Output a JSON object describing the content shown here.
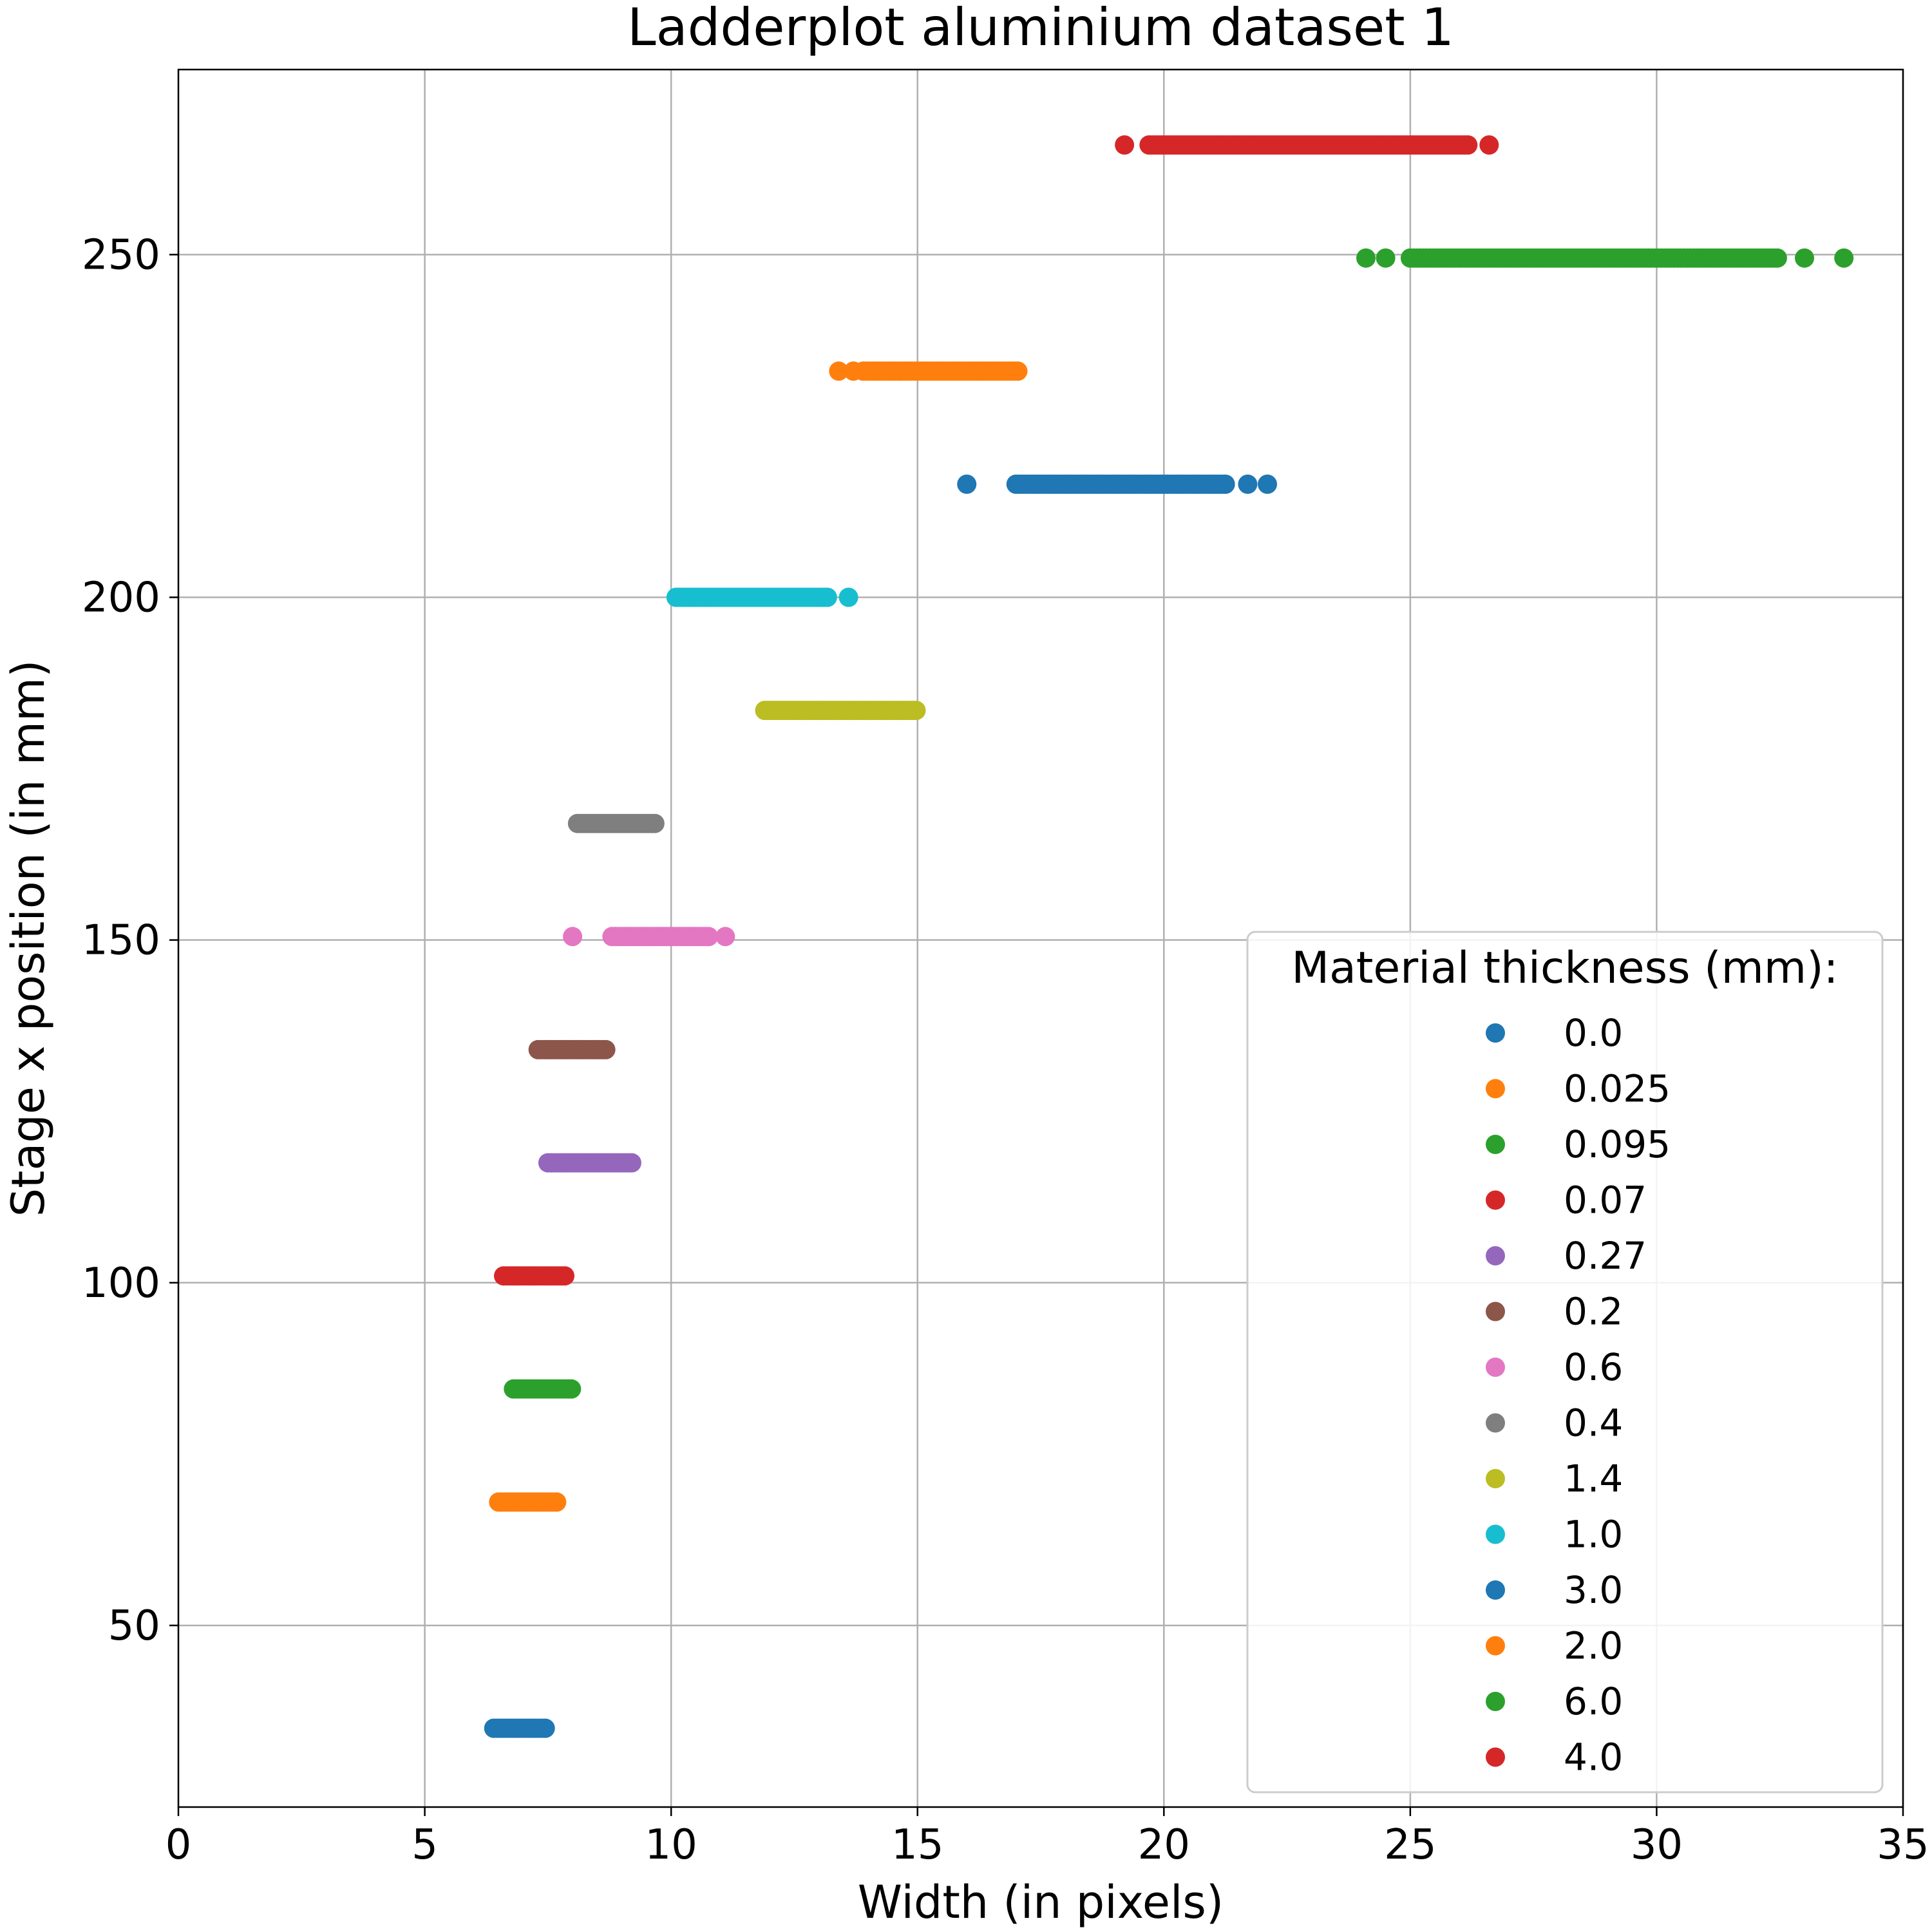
{
  "chart_data": {
    "type": "scatter",
    "title": "Ladderplot aluminium dataset 1",
    "xlabel": "Width (in pixels)",
    "ylabel": "Stage x position (in mm)",
    "xlim": [
      0,
      35
    ],
    "ylim": [
      23.5,
      277
    ],
    "xticks": [
      0,
      5,
      10,
      15,
      20,
      25,
      30,
      35
    ],
    "yticks": [
      50,
      100,
      150,
      200,
      250
    ],
    "grid": true,
    "legend": {
      "title": "Material thickness (mm):",
      "position": "lower-right"
    },
    "series": [
      {
        "name": "0.0",
        "color": "#1f77b4",
        "y": 35,
        "x_range": [
          6.4,
          7.5
        ],
        "outliers": []
      },
      {
        "name": "0.025",
        "color": "#ff7f0e",
        "y": 68,
        "x_range": [
          6.5,
          7.7
        ],
        "outliers": []
      },
      {
        "name": "0.095",
        "color": "#2ca02c",
        "y": 84.5,
        "x_range": [
          6.8,
          8.0
        ],
        "outliers": []
      },
      {
        "name": "0.07",
        "color": "#d62728",
        "y": 101,
        "x_range": [
          6.6,
          7.9
        ],
        "outliers": []
      },
      {
        "name": "0.27",
        "color": "#9467bd",
        "y": 117.5,
        "x_range": [
          7.5,
          9.2
        ],
        "outliers": []
      },
      {
        "name": "0.2",
        "color": "#8c564b",
        "y": 134,
        "x_range": [
          7.3,
          8.7
        ],
        "outliers": []
      },
      {
        "name": "0.6",
        "color": "#e377c2",
        "y": 150.5,
        "x_range": [
          8.8,
          10.8
        ],
        "outliers": [
          8.0,
          11.1
        ]
      },
      {
        "name": "0.4",
        "color": "#7f7f7f",
        "y": 167,
        "x_range": [
          8.1,
          9.7
        ],
        "outliers": []
      },
      {
        "name": "1.4",
        "color": "#bcbd22",
        "y": 183.5,
        "x_range": [
          11.9,
          15.0
        ],
        "outliers": []
      },
      {
        "name": "1.0",
        "color": "#17becf",
        "y": 200,
        "x_range": [
          10.1,
          13.2
        ],
        "outliers": [
          13.6
        ]
      },
      {
        "name": "3.0",
        "color": "#1f77b4",
        "y": 216.5,
        "x_range": [
          17.0,
          21.3
        ],
        "outliers": [
          16.0,
          21.7,
          22.1
        ]
      },
      {
        "name": "2.0",
        "color": "#ff7f0e",
        "y": 233,
        "x_range": [
          13.9,
          17.1
        ],
        "outliers": [
          13.4,
          13.7
        ]
      },
      {
        "name": "6.0",
        "color": "#2ca02c",
        "y": 249.5,
        "x_range": [
          25.0,
          32.5
        ],
        "outliers": [
          24.1,
          24.5,
          33.0,
          33.8
        ]
      },
      {
        "name": "4.0",
        "color": "#d62728",
        "y": 266,
        "x_range": [
          19.7,
          26.2
        ],
        "outliers": [
          19.2,
          26.6
        ]
      }
    ]
  }
}
